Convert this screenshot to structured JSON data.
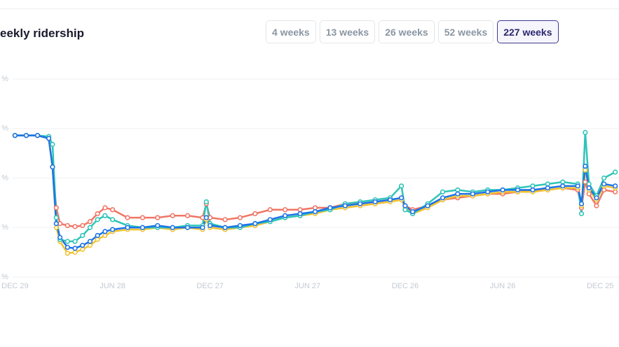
{
  "title": "eekly ridership",
  "range_buttons": [
    "4 weeks",
    "13 weeks",
    "26 weeks",
    "52 weeks",
    "227 weeks"
  ],
  "selected_button": 4,
  "chart_data": {
    "type": "line",
    "x": [
      0,
      3,
      6,
      9,
      10,
      11,
      12,
      14,
      16,
      18,
      20,
      22,
      24,
      26,
      30,
      34,
      38,
      42,
      46,
      50,
      51,
      52,
      56,
      60,
      64,
      68,
      72,
      76,
      80,
      84,
      88,
      92,
      96,
      100,
      103,
      104,
      106,
      110,
      114,
      118,
      122,
      126,
      130,
      134,
      138,
      142,
      146,
      150,
      151,
      152,
      153,
      155,
      157,
      160
    ],
    "xlim": [
      -4,
      161
    ],
    "xticks": [
      {
        "value": 0,
        "label": "DEC 29"
      },
      {
        "value": 26,
        "label": "JUN 28"
      },
      {
        "value": 52,
        "label": "DEC 27"
      },
      {
        "value": 78,
        "label": "JUN 27"
      },
      {
        "value": 104,
        "label": "DEC 26"
      },
      {
        "value": 130,
        "label": "JUN 26"
      },
      {
        "value": 156,
        "label": "DEC 25"
      }
    ],
    "ylim": [
      0,
      100
    ],
    "yticks": [
      {
        "value": 0,
        "label": "%"
      },
      {
        "value": 25,
        "label": "%"
      },
      {
        "value": 50,
        "label": "%"
      },
      {
        "value": 75,
        "label": "%"
      },
      {
        "value": 100,
        "label": "%"
      }
    ],
    "grid": true,
    "series": [
      {
        "color": "#f07565",
        "values": [
          71.5,
          71.5,
          71.5,
          70,
          55.6,
          35,
          27,
          26,
          25.5,
          26,
          28,
          32,
          35,
          34,
          30,
          30,
          30,
          31,
          31,
          30,
          37,
          30,
          29,
          30,
          32,
          34,
          34,
          34,
          35,
          35,
          37,
          37,
          38,
          39,
          40,
          36,
          34,
          36,
          39,
          40,
          41,
          42,
          42,
          43,
          44,
          44,
          45,
          44,
          35,
          48,
          42,
          36,
          44,
          43
        ]
      },
      {
        "color": "#f2c230",
        "values": [
          71.5,
          71.5,
          71.5,
          70,
          55.6,
          25,
          18,
          12,
          12.5,
          14,
          16,
          19,
          21,
          23,
          24,
          24,
          25,
          24,
          25,
          24,
          29,
          25,
          24,
          25,
          26,
          28,
          30,
          31,
          32,
          34,
          35,
          36,
          37,
          38,
          39,
          35,
          32,
          35,
          39,
          41,
          41,
          42,
          43,
          43,
          43,
          44,
          45,
          45,
          36,
          54,
          44,
          39,
          46,
          45
        ]
      },
      {
        "color": "#2ec4b8",
        "values": [
          71.5,
          71.5,
          71.5,
          71,
          67,
          30,
          19,
          18,
          18,
          21,
          25,
          29,
          31,
          29,
          26,
          25,
          25,
          25,
          26,
          26,
          38,
          27,
          25,
          25,
          27,
          28,
          30,
          31,
          33,
          34,
          37,
          38,
          39,
          40,
          46,
          34,
          32,
          37,
          43,
          44,
          43,
          44,
          44,
          45,
          46,
          47,
          48,
          47,
          32,
          73,
          47,
          41,
          50,
          53
        ]
      },
      {
        "color": "#1a73e8",
        "values": [
          71.5,
          71.5,
          71.5,
          70,
          55.6,
          27,
          20,
          15,
          14.5,
          16,
          18,
          21,
          23,
          24,
          25,
          25,
          26,
          25,
          25,
          25,
          30,
          26,
          25,
          26,
          27,
          29,
          31,
          32,
          33,
          35,
          36,
          37,
          38,
          39,
          40,
          36,
          33,
          36,
          40,
          42,
          42,
          43,
          44,
          44,
          44,
          45,
          46,
          46,
          37,
          56,
          45,
          40,
          47,
          46
        ]
      }
    ]
  }
}
